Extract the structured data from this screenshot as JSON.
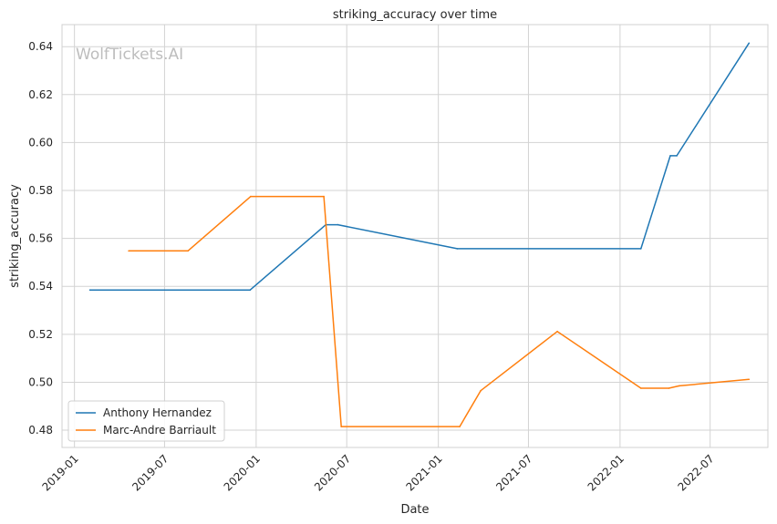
{
  "chart_data": {
    "type": "line",
    "title": "striking_accuracy over time",
    "xlabel": "Date",
    "ylabel": "striking_accuracy",
    "watermark": "WolfTickets.AI",
    "x_ticks": [
      "2019-01",
      "2019-07",
      "2020-01",
      "2020-07",
      "2021-01",
      "2021-07",
      "2022-01",
      "2022-07"
    ],
    "y_ticks": [
      "0.48",
      "0.50",
      "0.52",
      "0.54",
      "0.56",
      "0.58",
      "0.60",
      "0.62",
      "0.64"
    ],
    "xlim": [
      "2018-12-07",
      "2022-10-25"
    ],
    "ylim": [
      0.4728,
      0.6492
    ],
    "grid": true,
    "legend_position": "lower-left",
    "series": [
      {
        "name": "Anthony Hernandez",
        "color": "#1f77b4",
        "points": [
          {
            "x": "2019-02-01",
            "y": 0.5385
          },
          {
            "x": "2019-12-20",
            "y": 0.5385
          },
          {
            "x": "2020-05-20",
            "y": 0.5657
          },
          {
            "x": "2020-06-13",
            "y": 0.5657
          },
          {
            "x": "2021-02-08",
            "y": 0.5557
          },
          {
            "x": "2022-02-12",
            "y": 0.5557
          },
          {
            "x": "2022-04-12",
            "y": 0.5945
          },
          {
            "x": "2022-04-25",
            "y": 0.5945
          },
          {
            "x": "2022-09-17",
            "y": 0.6415
          }
        ]
      },
      {
        "name": "Marc-Andre Barriault",
        "color": "#ff7f0e",
        "points": [
          {
            "x": "2019-04-20",
            "y": 0.5548
          },
          {
            "x": "2019-08-17",
            "y": 0.5548
          },
          {
            "x": "2019-12-21",
            "y": 0.5775
          },
          {
            "x": "2020-05-16",
            "y": 0.5775
          },
          {
            "x": "2020-06-20",
            "y": 0.4815
          },
          {
            "x": "2021-02-13",
            "y": 0.4815
          },
          {
            "x": "2021-03-27",
            "y": 0.4965
          },
          {
            "x": "2021-08-28",
            "y": 0.5212
          },
          {
            "x": "2022-02-12",
            "y": 0.4975
          },
          {
            "x": "2022-04-09",
            "y": 0.4975
          },
          {
            "x": "2022-04-30",
            "y": 0.4985
          },
          {
            "x": "2022-09-17",
            "y": 0.5012
          }
        ]
      }
    ]
  }
}
